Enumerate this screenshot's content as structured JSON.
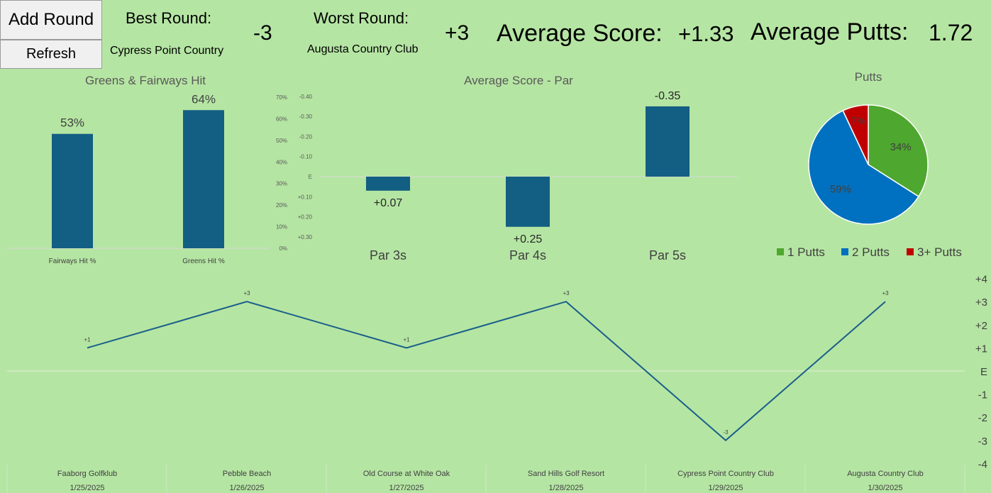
{
  "buttons": {
    "add_round": "Add Round",
    "refresh": "Refresh"
  },
  "summary": {
    "best_label": "Best Round:",
    "best_score": "-3",
    "best_course": "Cypress Point Country",
    "worst_label": "Worst Round:",
    "worst_score": "+3",
    "worst_course": "Augusta Country Club",
    "avg_score_label": "Average Score:",
    "avg_score": "+1.33",
    "avg_putts_label": "Average Putts:",
    "avg_putts": "1.72"
  },
  "colors": {
    "background": "#b5e5a3",
    "bar": "#135e83",
    "line": "#1a5e8a",
    "pie_green": "#4ea72e",
    "pie_blue": "#0070c0",
    "pie_red": "#c00000"
  },
  "chart_data": [
    {
      "type": "bar",
      "title": "Greens & Fairways Hit",
      "categories": [
        "Fairways Hit %",
        "Greens Hit %"
      ],
      "values": [
        53,
        64
      ],
      "data_labels": [
        "53%",
        "64%"
      ],
      "ylim": [
        0,
        70
      ],
      "ytick_labels": [
        "0%",
        "10%",
        "20%",
        "30%",
        "40%",
        "50%",
        "60%",
        "70%"
      ],
      "grid": false
    },
    {
      "type": "bar",
      "title": "Average Score - Par",
      "categories": [
        "Par 3s",
        "Par 4s",
        "Par 5s"
      ],
      "values": [
        0.07,
        0.25,
        -0.35
      ],
      "data_labels": [
        "+0.07",
        "+0.25",
        "-0.35"
      ],
      "ylim": [
        0.35,
        -0.45
      ],
      "axis_reversed": true,
      "ytick_values": [
        -0.4,
        -0.3,
        -0.2,
        -0.1,
        0,
        0.1,
        0.2,
        0.3
      ],
      "ytick_labels": [
        "-0.40",
        "-0.30",
        "-0.20",
        "-0.10",
        "E",
        "+0.10",
        "+0.20",
        "+0.30"
      ]
    },
    {
      "type": "pie",
      "title": "Putts",
      "labels": [
        "1 Putts",
        "2 Putts",
        "3+ Putts"
      ],
      "values": [
        34,
        59,
        7
      ],
      "data_labels": [
        "34%",
        "59%",
        "7%"
      ],
      "legend": "bottom"
    },
    {
      "type": "line",
      "categories": [
        {
          "course": "Faaborg Golfklub",
          "date": "1/25/2025"
        },
        {
          "course": "Pebble Beach",
          "date": "1/26/2025"
        },
        {
          "course": "Old Course at White Oak",
          "date": "1/27/2025"
        },
        {
          "course": "Sand Hills Golf Resort",
          "date": "1/28/2025"
        },
        {
          "course": "Cypress Point Country Club",
          "date": "1/29/2025"
        },
        {
          "course": "Augusta Country Club",
          "date": "1/30/2025"
        }
      ],
      "values": [
        1,
        3,
        1,
        3,
        -3,
        3
      ],
      "data_labels": [
        "+1",
        "+3",
        "+1",
        "+3",
        "-3",
        "+3"
      ],
      "ylim": [
        -4,
        4
      ],
      "ytick_values": [
        4,
        3,
        2,
        1,
        0,
        -1,
        -2,
        -3,
        -4
      ],
      "ytick_labels": [
        "+4",
        "+3",
        "+2",
        "+1",
        "E",
        "-1",
        "-2",
        "-3",
        "-4"
      ],
      "yaxis_position": "right"
    }
  ]
}
